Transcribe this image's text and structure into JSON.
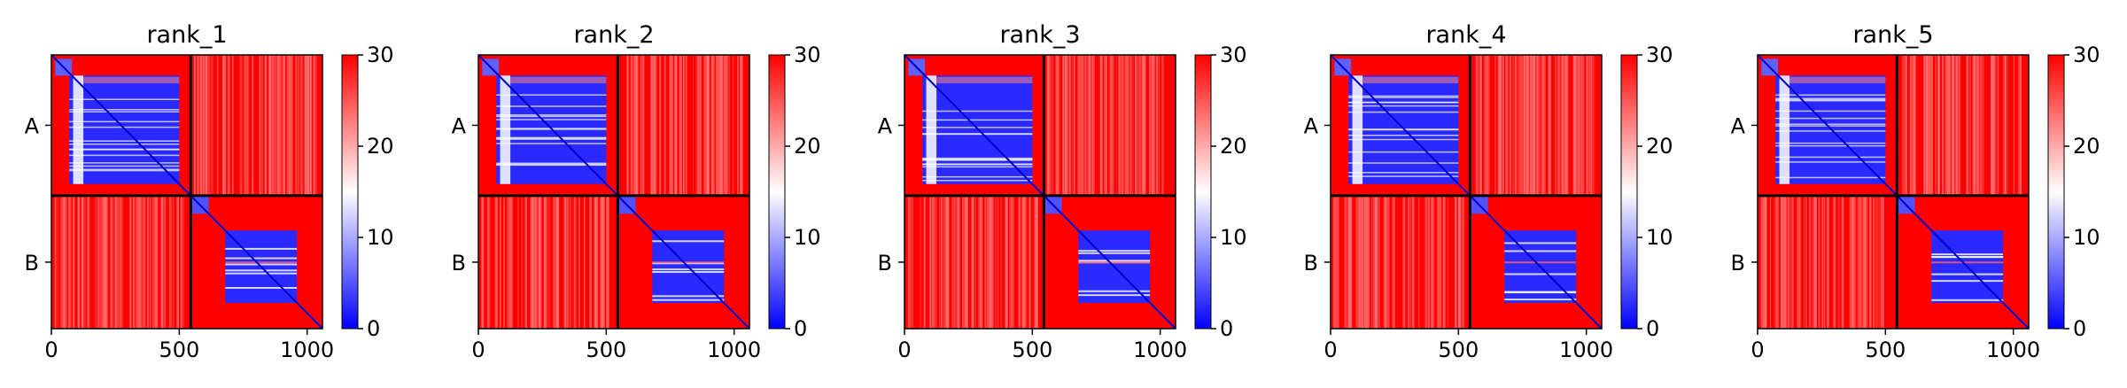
{
  "figure": {
    "panel_count": 5,
    "colormap": {
      "low": "#0000ff",
      "mid": "#ffffff",
      "high": "#ff0000"
    }
  },
  "chart_data": [
    {
      "type": "heatmap",
      "title": "rank_1",
      "x_ticks": [
        "0",
        "500",
        "1000"
      ],
      "x_tick_values": [
        0,
        500,
        1000
      ],
      "y_labels": [
        "A",
        "B"
      ],
      "xlim": [
        0,
        1060
      ],
      "ylim": [
        1060,
        0
      ],
      "chain_boundary": 545,
      "colorbar": {
        "range": [
          0,
          30
        ],
        "ticks": [
          "0",
          "10",
          "20",
          "30"
        ],
        "tick_values": [
          0,
          10,
          20,
          30
        ]
      }
    },
    {
      "type": "heatmap",
      "title": "rank_2",
      "x_ticks": [
        "0",
        "500",
        "1000"
      ],
      "x_tick_values": [
        0,
        500,
        1000
      ],
      "y_labels": [
        "A",
        "B"
      ],
      "xlim": [
        0,
        1060
      ],
      "ylim": [
        1060,
        0
      ],
      "chain_boundary": 545,
      "colorbar": {
        "range": [
          0,
          30
        ],
        "ticks": [
          "0",
          "10",
          "20",
          "30"
        ],
        "tick_values": [
          0,
          10,
          20,
          30
        ]
      }
    },
    {
      "type": "heatmap",
      "title": "rank_3",
      "x_ticks": [
        "0",
        "500",
        "1000"
      ],
      "x_tick_values": [
        0,
        500,
        1000
      ],
      "y_labels": [
        "A",
        "B"
      ],
      "xlim": [
        0,
        1060
      ],
      "ylim": [
        1060,
        0
      ],
      "chain_boundary": 545,
      "colorbar": {
        "range": [
          0,
          30
        ],
        "ticks": [
          "0",
          "10",
          "20",
          "30"
        ],
        "tick_values": [
          0,
          10,
          20,
          30
        ]
      }
    },
    {
      "type": "heatmap",
      "title": "rank_4",
      "x_ticks": [
        "0",
        "500",
        "1000"
      ],
      "x_tick_values": [
        0,
        500,
        1000
      ],
      "y_labels": [
        "A",
        "B"
      ],
      "xlim": [
        0,
        1060
      ],
      "ylim": [
        1060,
        0
      ],
      "chain_boundary": 545,
      "colorbar": {
        "range": [
          0,
          30
        ],
        "ticks": [
          "0",
          "10",
          "20",
          "30"
        ],
        "tick_values": [
          0,
          10,
          20,
          30
        ]
      }
    },
    {
      "type": "heatmap",
      "title": "rank_5",
      "x_ticks": [
        "0",
        "500",
        "1000"
      ],
      "x_tick_values": [
        0,
        500,
        1000
      ],
      "y_labels": [
        "A",
        "B"
      ],
      "xlim": [
        0,
        1060
      ],
      "ylim": [
        1060,
        0
      ],
      "chain_boundary": 545,
      "colorbar": {
        "range": [
          0,
          30
        ],
        "ticks": [
          "0",
          "10",
          "20",
          "30"
        ],
        "tick_values": [
          0,
          10,
          20,
          30
        ]
      }
    }
  ]
}
